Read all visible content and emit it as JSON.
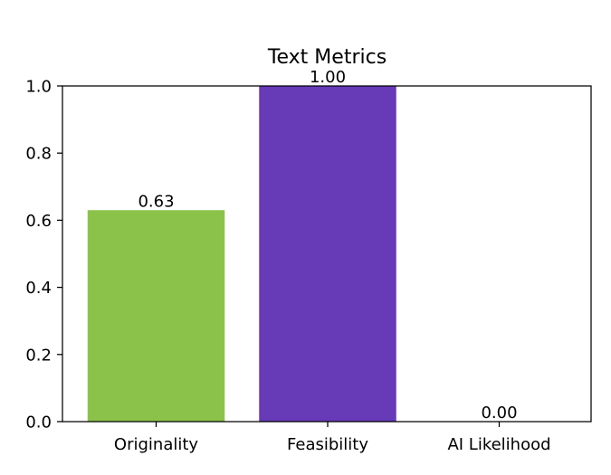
{
  "chart_data": {
    "type": "bar",
    "title": "Text Metrics",
    "categories": [
      "Originality",
      "Feasibility",
      "AI Likelihood"
    ],
    "values": [
      0.63,
      1.0,
      0.0
    ],
    "value_labels": [
      "0.63",
      "1.00",
      "0.00"
    ],
    "colors": [
      "#8bc34a",
      "#673ab7",
      "#ff5722"
    ],
    "ylim": [
      0,
      1.0
    ],
    "yticks": [
      0.0,
      0.2,
      0.4,
      0.6,
      0.8,
      1.0
    ],
    "ytick_labels": [
      "0.0",
      "0.2",
      "0.4",
      "0.6",
      "0.8",
      "1.0"
    ],
    "xlabel": "",
    "ylabel": "",
    "grid": false,
    "legend": "none"
  }
}
